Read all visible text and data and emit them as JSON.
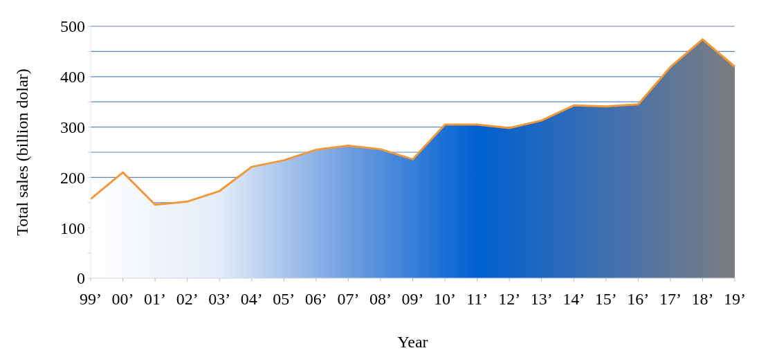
{
  "chart_data": {
    "type": "area",
    "xlabel": "Year",
    "ylabel": "Total sales (billion dolar)",
    "categories": [
      "99’",
      "00’",
      "01’",
      "02’",
      "03’",
      "04’",
      "05’",
      "06’",
      "07’",
      "08’",
      "09’",
      "10’",
      "11’",
      "12’",
      "13’",
      "14’",
      "15’",
      "16’",
      "17’",
      "18’",
      "19’"
    ],
    "series": [
      {
        "color": "#f0983a",
        "values": [
          157,
          210,
          146,
          152,
          173,
          221,
          234,
          255,
          263,
          256,
          236,
          305,
          305,
          298,
          313,
          343,
          341,
          345,
          419,
          474,
          420
        ]
      }
    ],
    "ylim": [
      0,
      500
    ],
    "yticks": [
      0,
      {
        "value": 50,
        "label": null
      },
      100,
      {
        "value": 150,
        "label": null
      },
      200,
      {
        "value": 250,
        "label": null
      },
      300,
      {
        "value": 350,
        "label": null
      },
      400,
      {
        "value": 450,
        "label": null
      },
      500
    ],
    "grid": "y"
  }
}
